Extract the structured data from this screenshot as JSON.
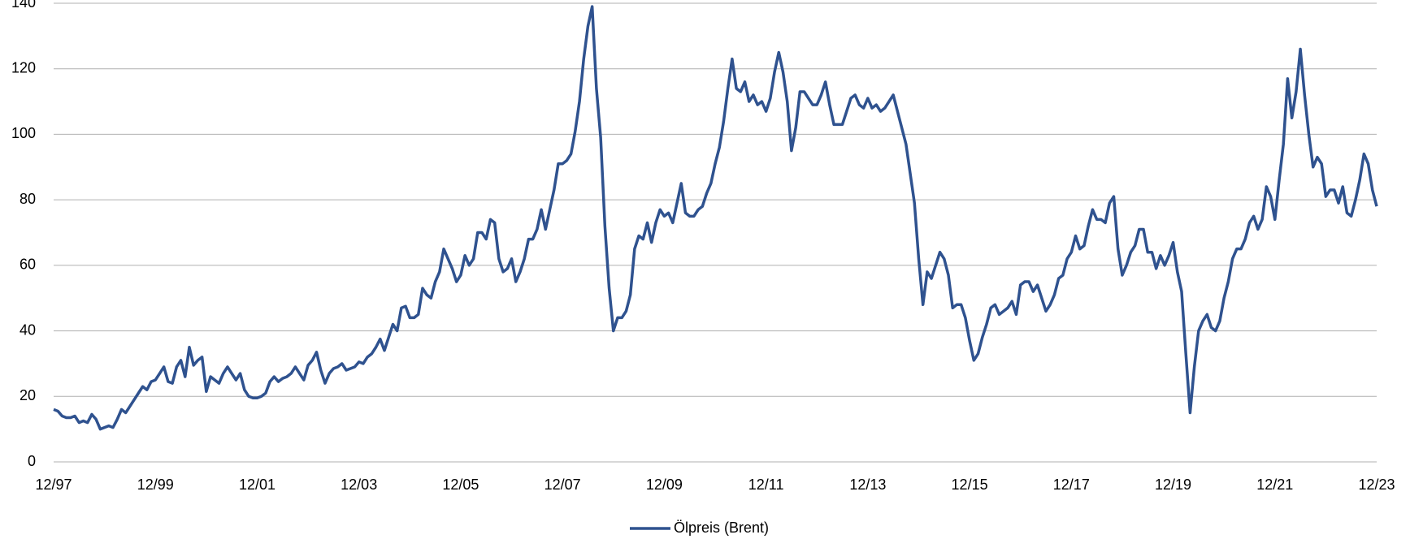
{
  "chart_data": {
    "type": "line",
    "categories": [
      "12/97",
      null,
      null,
      null,
      null,
      null,
      null,
      null,
      null,
      null,
      null,
      null,
      null,
      null,
      null,
      null,
      null,
      null,
      null,
      null,
      null,
      null,
      null,
      null,
      "12/99",
      null,
      null,
      null,
      null,
      null,
      null,
      null,
      null,
      null,
      null,
      null,
      null,
      null,
      null,
      null,
      null,
      null,
      null,
      null,
      null,
      null,
      null,
      null,
      "12/01",
      null,
      null,
      null,
      null,
      null,
      null,
      null,
      null,
      null,
      null,
      null,
      null,
      null,
      null,
      null,
      null,
      null,
      null,
      null,
      null,
      null,
      null,
      null,
      "12/03",
      null,
      null,
      null,
      null,
      null,
      null,
      null,
      null,
      null,
      null,
      null,
      null,
      null,
      null,
      null,
      null,
      null,
      null,
      null,
      null,
      null,
      null,
      null,
      "12/05",
      null,
      null,
      null,
      null,
      null,
      null,
      null,
      null,
      null,
      null,
      null,
      null,
      null,
      null,
      null,
      null,
      null,
      null,
      null,
      null,
      null,
      null,
      null,
      "12/07",
      null,
      null,
      null,
      null,
      null,
      null,
      null,
      null,
      null,
      null,
      null,
      null,
      null,
      null,
      null,
      null,
      null,
      null,
      null,
      null,
      null,
      null,
      null,
      "12/09",
      null,
      null,
      null,
      null,
      null,
      null,
      null,
      null,
      null,
      null,
      null,
      null,
      null,
      null,
      null,
      null,
      null,
      null,
      null,
      null,
      null,
      null,
      null,
      "12/11",
      null,
      null,
      null,
      null,
      null,
      null,
      null,
      null,
      null,
      null,
      null,
      null,
      null,
      null,
      null,
      null,
      null,
      null,
      null,
      null,
      null,
      null,
      null,
      "12/13",
      null,
      null,
      null,
      null,
      null,
      null,
      null,
      null,
      null,
      null,
      null,
      null,
      null,
      null,
      null,
      null,
      null,
      null,
      null,
      null,
      null,
      null,
      null,
      "12/15",
      null,
      null,
      null,
      null,
      null,
      null,
      null,
      null,
      null,
      null,
      null,
      null,
      null,
      null,
      null,
      null,
      null,
      null,
      null,
      null,
      null,
      null,
      null,
      "12/17",
      null,
      null,
      null,
      null,
      null,
      null,
      null,
      null,
      null,
      null,
      null,
      null,
      null,
      null,
      null,
      null,
      null,
      null,
      null,
      null,
      null,
      null,
      null,
      "12/19",
      null,
      null,
      null,
      null,
      null,
      null,
      null,
      null,
      null,
      null,
      null,
      null,
      null,
      null,
      null,
      null,
      null,
      null,
      null,
      null,
      null,
      null,
      null,
      "12/21",
      null,
      null,
      null,
      null,
      null,
      null,
      null,
      null,
      null,
      null,
      null,
      null,
      null,
      null,
      null,
      null,
      null,
      null,
      null,
      null,
      null,
      null,
      null,
      "12/23"
    ],
    "series": [
      {
        "name": "Ölpreis (Brent)",
        "color": "#2f528f",
        "values": [
          16,
          15.5,
          14,
          13.5,
          13.5,
          14,
          12,
          12.5,
          12,
          14.5,
          13,
          10,
          10.5,
          11,
          10.5,
          13,
          16,
          15,
          17,
          19,
          21,
          23,
          22,
          24.5,
          25,
          27,
          29,
          24.5,
          24,
          29,
          31,
          26,
          35,
          29.5,
          31,
          32,
          21.5,
          26,
          25,
          24,
          27,
          29,
          27,
          25,
          27,
          22,
          20,
          19.5,
          19.5,
          20,
          21,
          24.5,
          26,
          24.5,
          25.5,
          26,
          27,
          29,
          27,
          25,
          29.5,
          31,
          33.5,
          28,
          24,
          27,
          28.5,
          29,
          30,
          28,
          28.5,
          29,
          30.5,
          30,
          32,
          33,
          35,
          37.5,
          34,
          38,
          42,
          40,
          47,
          47.5,
          44,
          44,
          45,
          53,
          51,
          50,
          55,
          58,
          65,
          62,
          59,
          55,
          57,
          63,
          60,
          62,
          70,
          70,
          68,
          74,
          73,
          62,
          58,
          59,
          62,
          55,
          58,
          62,
          68,
          68,
          71,
          77,
          71,
          77,
          83,
          91,
          91,
          92,
          94,
          101,
          110,
          123,
          133,
          139,
          114,
          99,
          72,
          53,
          40,
          44,
          44,
          46,
          51,
          65,
          69,
          68,
          73,
          67,
          73,
          77,
          75,
          76,
          73,
          79,
          85,
          76,
          75,
          75,
          77,
          78,
          82,
          85,
          91,
          96,
          104,
          114,
          123,
          114,
          113,
          116,
          110,
          112,
          109,
          110,
          107,
          111,
          119,
          125,
          119,
          110,
          95,
          102,
          113,
          113,
          111,
          109,
          109,
          112,
          116,
          109,
          103,
          103,
          103,
          107,
          111,
          112,
          109,
          108,
          111,
          108,
          109,
          107,
          108,
          110,
          112,
          107,
          102,
          97,
          88,
          79,
          62,
          48,
          58,
          56,
          60,
          64,
          62,
          57,
          47,
          48,
          48,
          44,
          37,
          31,
          33,
          38,
          42,
          47,
          48,
          45,
          46,
          47,
          49,
          45,
          54,
          55,
          55,
          52,
          54,
          50,
          46,
          48,
          51,
          56,
          57,
          62,
          64,
          69,
          65,
          66,
          72,
          77,
          74,
          74,
          73,
          79,
          81,
          65,
          57,
          60,
          64,
          66,
          71,
          71,
          64,
          64,
          59,
          63,
          60,
          63,
          67,
          58,
          52,
          33,
          15,
          29,
          40,
          43,
          45,
          41,
          40,
          43,
          50,
          55,
          62,
          65,
          65,
          68,
          73,
          75,
          71,
          74,
          84,
          81,
          74,
          86,
          97,
          117,
          105,
          113,
          126,
          112,
          100,
          90,
          93,
          91,
          81,
          83,
          83,
          79,
          84,
          76,
          75,
          80,
          86,
          94,
          91,
          83,
          78
        ]
      }
    ],
    "ylim": [
      0,
      140
    ],
    "yticks": [
      0,
      20,
      40,
      60,
      80,
      100,
      120,
      140
    ],
    "grid": true,
    "legend": "bottom"
  }
}
